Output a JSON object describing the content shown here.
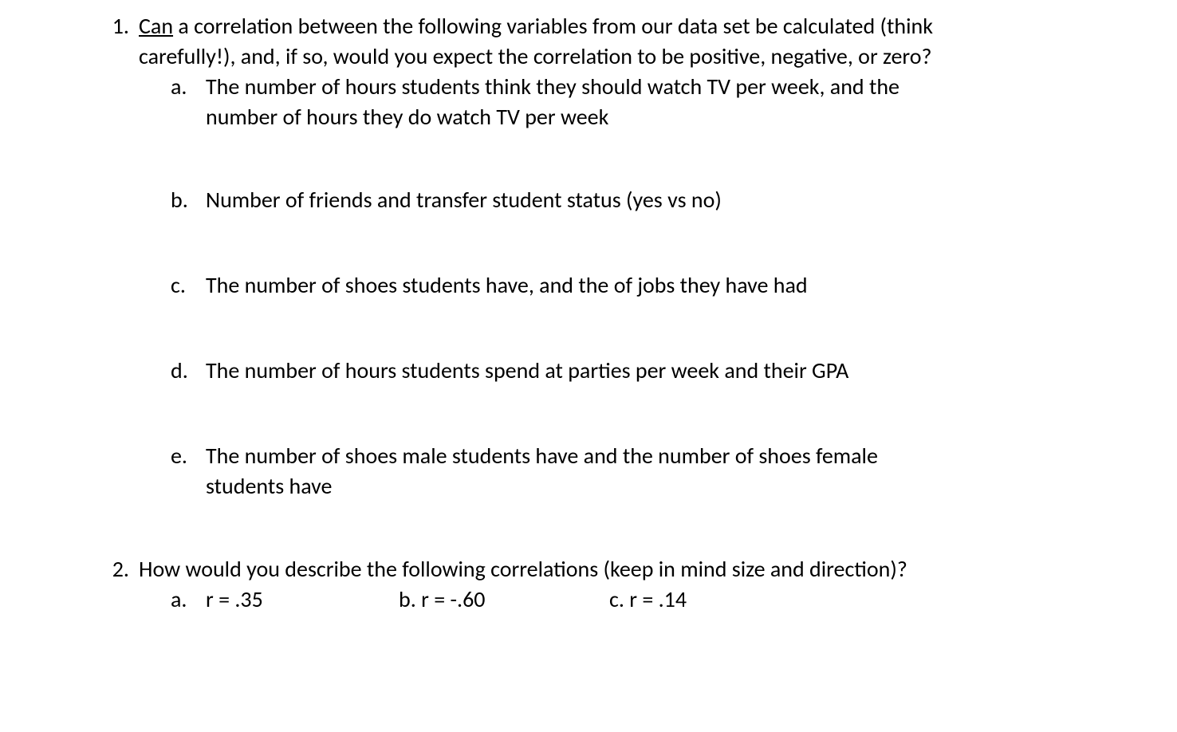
{
  "q1": {
    "number": "1.",
    "lead_underlined": "Can",
    "lead_rest": " a correlation between the following variables from our data set be calculated (think carefully!), and, if so, would you expect the correlation to be positive, negative, or zero?",
    "items": {
      "a": {
        "letter": "a.",
        "text": "The number of hours students think they should watch TV per week, and the number of hours they do watch TV per week"
      },
      "b": {
        "letter": "b.",
        "text": "Number of friends and transfer student status (yes vs no)"
      },
      "c": {
        "letter": "c.",
        "text": "The number of shoes students have, and the of jobs they have had"
      },
      "d": {
        "letter": "d.",
        "text": "The number of hours students spend at parties per week and their GPA"
      },
      "e": {
        "letter": "e.",
        "text": "The number of shoes male students have and the number of shoes female students have"
      }
    }
  },
  "q2": {
    "number": "2.",
    "prompt": "How would you describe the following correlations (keep in mind size and direction)?",
    "a_letter": "a.",
    "a_text": "r = .35",
    "b": "b. r = -.60",
    "c": "c. r = .14"
  }
}
